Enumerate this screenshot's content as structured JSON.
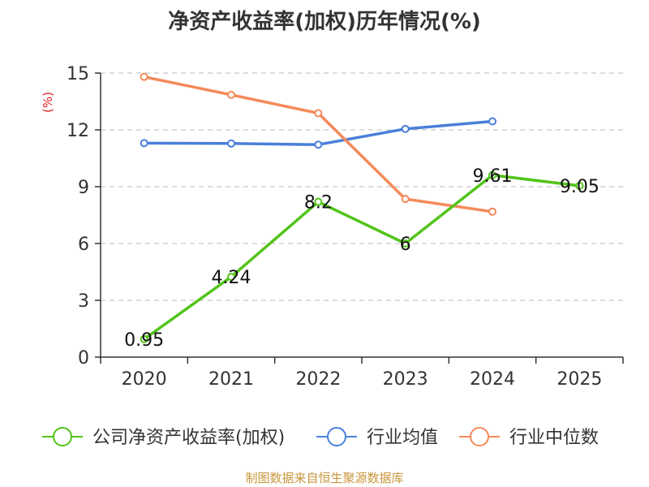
{
  "source": "制图数据来自恒生聚源数据库",
  "chart_data": {
    "type": "line",
    "title": "净资产收益率(加权)历年情况(%)",
    "ylabel": "(%)",
    "xlabel": "",
    "categories": [
      "2020",
      "2021",
      "2022",
      "2023",
      "2024",
      "2025"
    ],
    "ylim": [
      0,
      15
    ],
    "yticks": [
      0,
      3,
      6,
      9,
      12,
      15
    ],
    "grid": true,
    "legend_position": "bottom",
    "series": [
      {
        "name": "公司净资产收益率(加权)",
        "color": "#52c41a",
        "values": [
          0.95,
          4.24,
          8.2,
          6,
          9.61,
          9.05
        ],
        "labels": [
          "0.95",
          "4.24",
          "8.2",
          "6",
          "9.61",
          "9.05"
        ]
      },
      {
        "name": "行业均值",
        "color": "#4a7fdb",
        "values": [
          11.3,
          11.28,
          11.22,
          12.05,
          12.45,
          null
        ]
      },
      {
        "name": "行业中位数",
        "color": "#f58a5a",
        "values": [
          14.8,
          13.85,
          12.88,
          8.35,
          7.68,
          null
        ]
      }
    ]
  }
}
